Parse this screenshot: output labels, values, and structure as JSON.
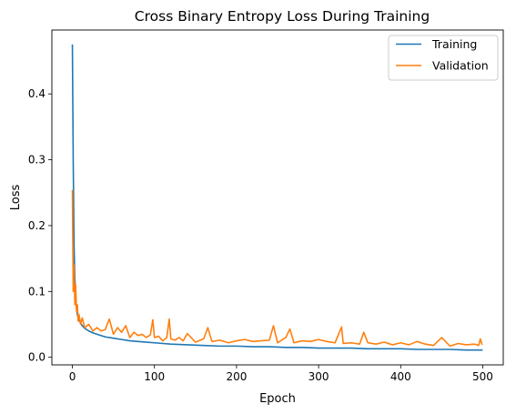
{
  "chart_data": {
    "type": "line",
    "title": "Cross Binary Entropy Loss During Training",
    "xlabel": "Epoch",
    "ylabel": "Loss",
    "xlim": [
      -25,
      525
    ],
    "ylim": [
      -0.0115,
      0.497
    ],
    "xticks": [
      0,
      100,
      200,
      300,
      400,
      500
    ],
    "yticks": [
      0.0,
      0.1,
      0.2,
      0.3,
      0.4
    ],
    "ytick_labels": [
      "0.0",
      "0.1",
      "0.2",
      "0.3",
      "0.4"
    ],
    "legend_position": "top-right",
    "series": [
      {
        "name": "Training",
        "color": "#1f77b4",
        "x": [
          0,
          1,
          2,
          3,
          4,
          5,
          6,
          8,
          10,
          12,
          15,
          20,
          25,
          30,
          40,
          50,
          60,
          70,
          80,
          90,
          100,
          120,
          140,
          160,
          180,
          200,
          220,
          240,
          260,
          280,
          300,
          320,
          340,
          360,
          380,
          400,
          420,
          440,
          460,
          480,
          499
        ],
        "values": [
          0.474,
          0.3,
          0.17,
          0.12,
          0.095,
          0.075,
          0.065,
          0.057,
          0.052,
          0.048,
          0.044,
          0.04,
          0.037,
          0.035,
          0.031,
          0.029,
          0.027,
          0.025,
          0.024,
          0.023,
          0.022,
          0.02,
          0.019,
          0.018,
          0.017,
          0.017,
          0.016,
          0.016,
          0.015,
          0.015,
          0.014,
          0.014,
          0.014,
          0.013,
          0.013,
          0.013,
          0.012,
          0.012,
          0.012,
          0.011,
          0.011
        ]
      },
      {
        "name": "Validation",
        "color": "#ff7f0e",
        "x": [
          0,
          1,
          2,
          3,
          4,
          5,
          6,
          7,
          8,
          10,
          12,
          15,
          20,
          25,
          30,
          35,
          40,
          45,
          50,
          55,
          60,
          65,
          70,
          75,
          80,
          85,
          90,
          95,
          98,
          100,
          105,
          110,
          115,
          118,
          120,
          125,
          130,
          135,
          140,
          150,
          160,
          165,
          170,
          180,
          190,
          200,
          210,
          220,
          230,
          240,
          245,
          250,
          260,
          265,
          270,
          280,
          290,
          300,
          310,
          320,
          328,
          330,
          340,
          350,
          355,
          360,
          370,
          380,
          390,
          400,
          410,
          420,
          430,
          440,
          450,
          460,
          470,
          480,
          490,
          495,
          497,
          499
        ],
        "values": [
          0.253,
          0.1,
          0.14,
          0.08,
          0.11,
          0.07,
          0.08,
          0.055,
          0.065,
          0.05,
          0.06,
          0.045,
          0.05,
          0.04,
          0.045,
          0.04,
          0.042,
          0.058,
          0.035,
          0.045,
          0.038,
          0.048,
          0.03,
          0.038,
          0.033,
          0.035,
          0.03,
          0.034,
          0.057,
          0.03,
          0.032,
          0.025,
          0.03,
          0.058,
          0.028,
          0.026,
          0.03,
          0.025,
          0.036,
          0.023,
          0.028,
          0.045,
          0.024,
          0.026,
          0.022,
          0.025,
          0.027,
          0.024,
          0.025,
          0.026,
          0.048,
          0.022,
          0.03,
          0.043,
          0.022,
          0.025,
          0.024,
          0.027,
          0.024,
          0.022,
          0.046,
          0.021,
          0.022,
          0.02,
          0.038,
          0.022,
          0.02,
          0.023,
          0.019,
          0.022,
          0.019,
          0.024,
          0.02,
          0.018,
          0.03,
          0.017,
          0.021,
          0.019,
          0.02,
          0.018,
          0.028,
          0.02
        ]
      }
    ]
  }
}
